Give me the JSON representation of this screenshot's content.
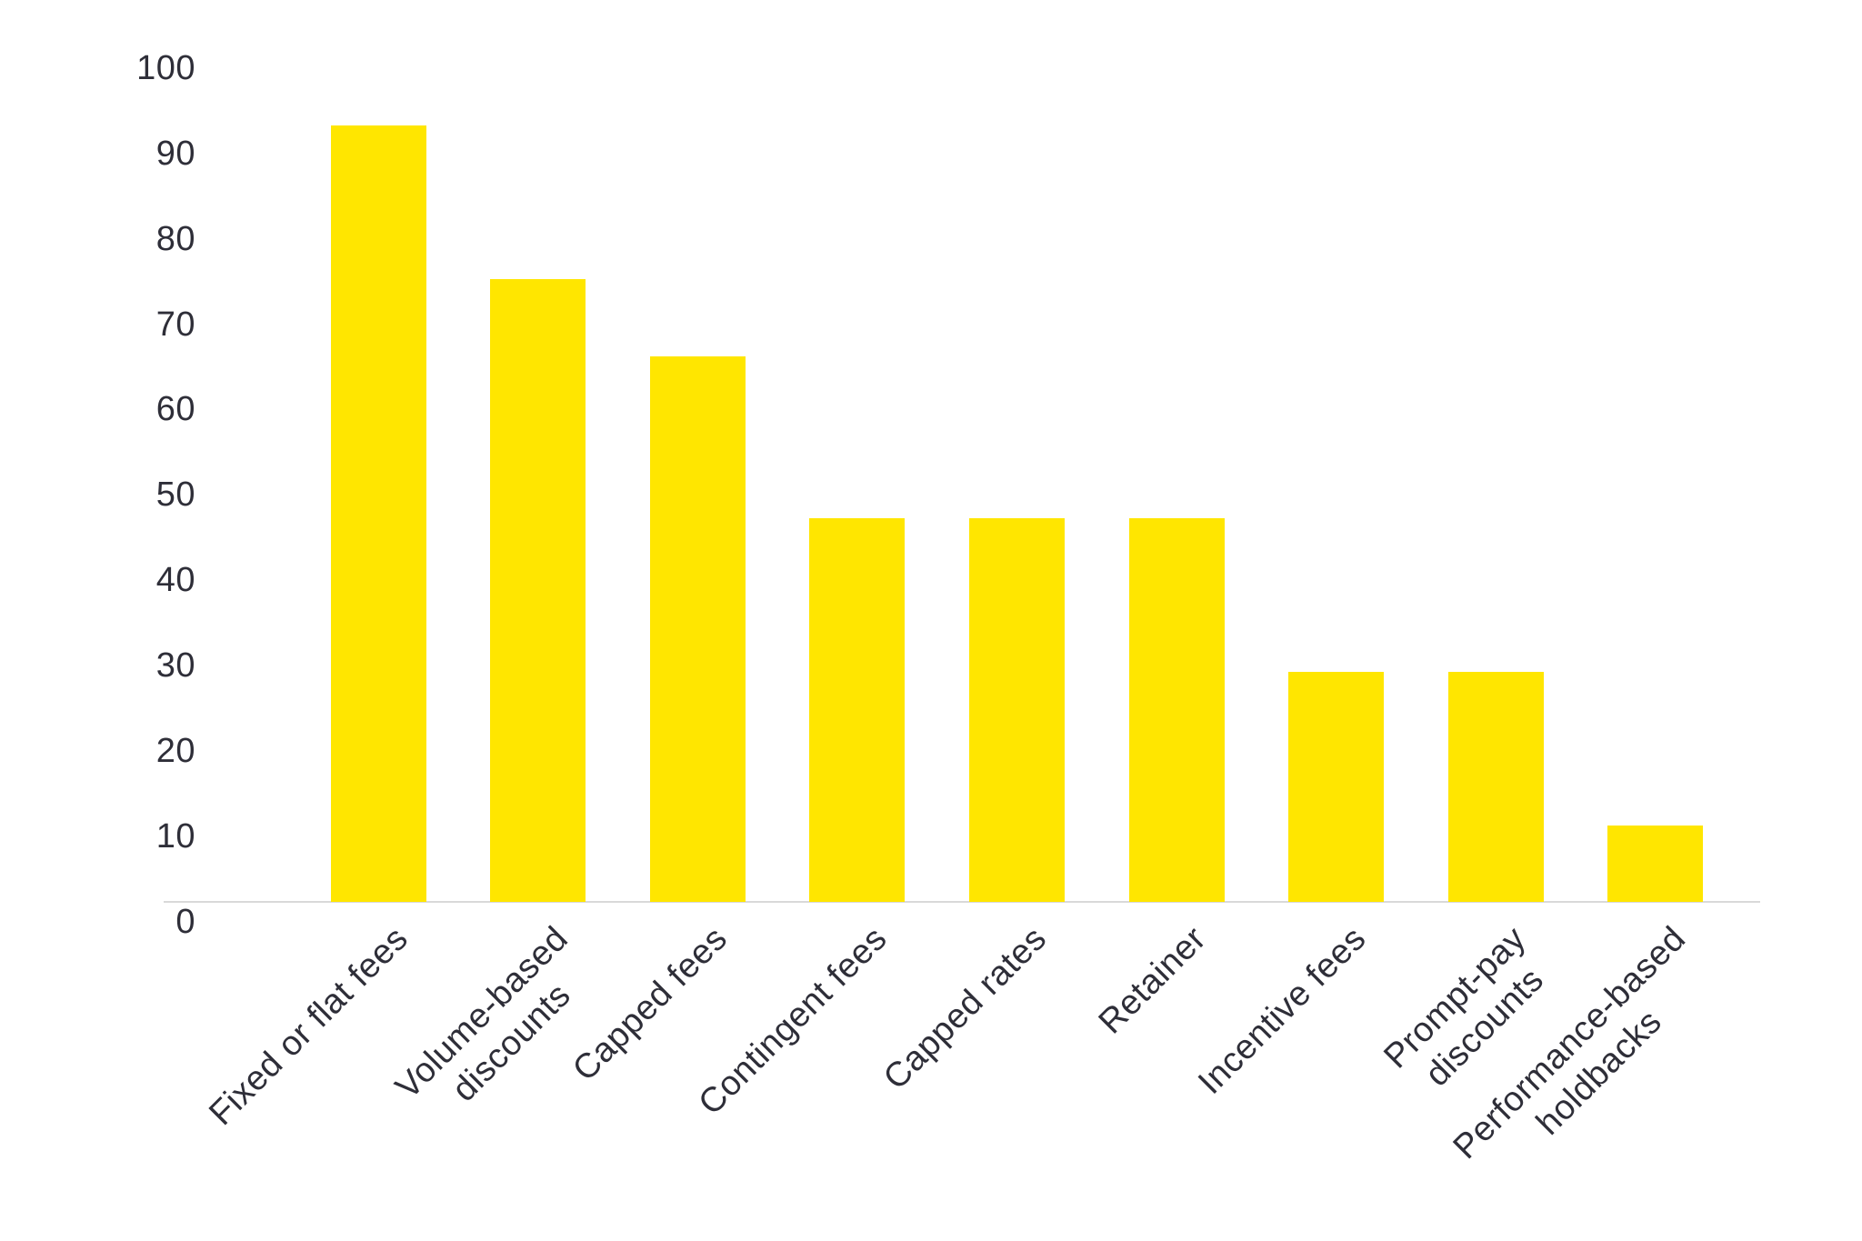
{
  "chart_data": {
    "type": "bar",
    "title": "",
    "xlabel": "",
    "ylabel": "",
    "categories": [
      "Fixed or flat fees",
      "Volume-based\ndiscounts",
      "Capped fees",
      "Contingent fees",
      "Capped rates",
      "Retainer",
      "Incentive fees",
      "Prompt-pay\ndiscounts",
      "Performance-based\nholdbacks"
    ],
    "values": [
      91,
      73,
      64,
      45,
      45,
      45,
      27,
      27,
      9
    ],
    "yticks": [
      0,
      10,
      20,
      30,
      40,
      50,
      60,
      70,
      80,
      90,
      100
    ],
    "ylim": [
      0,
      100
    ],
    "grid": false,
    "legend": "none",
    "bar_color": "#FFE600",
    "label_color": "#2E2E38",
    "axis_line_color": "#D9D9D9",
    "background": "#FFFFFF",
    "x_label_rotation_deg": -45
  }
}
